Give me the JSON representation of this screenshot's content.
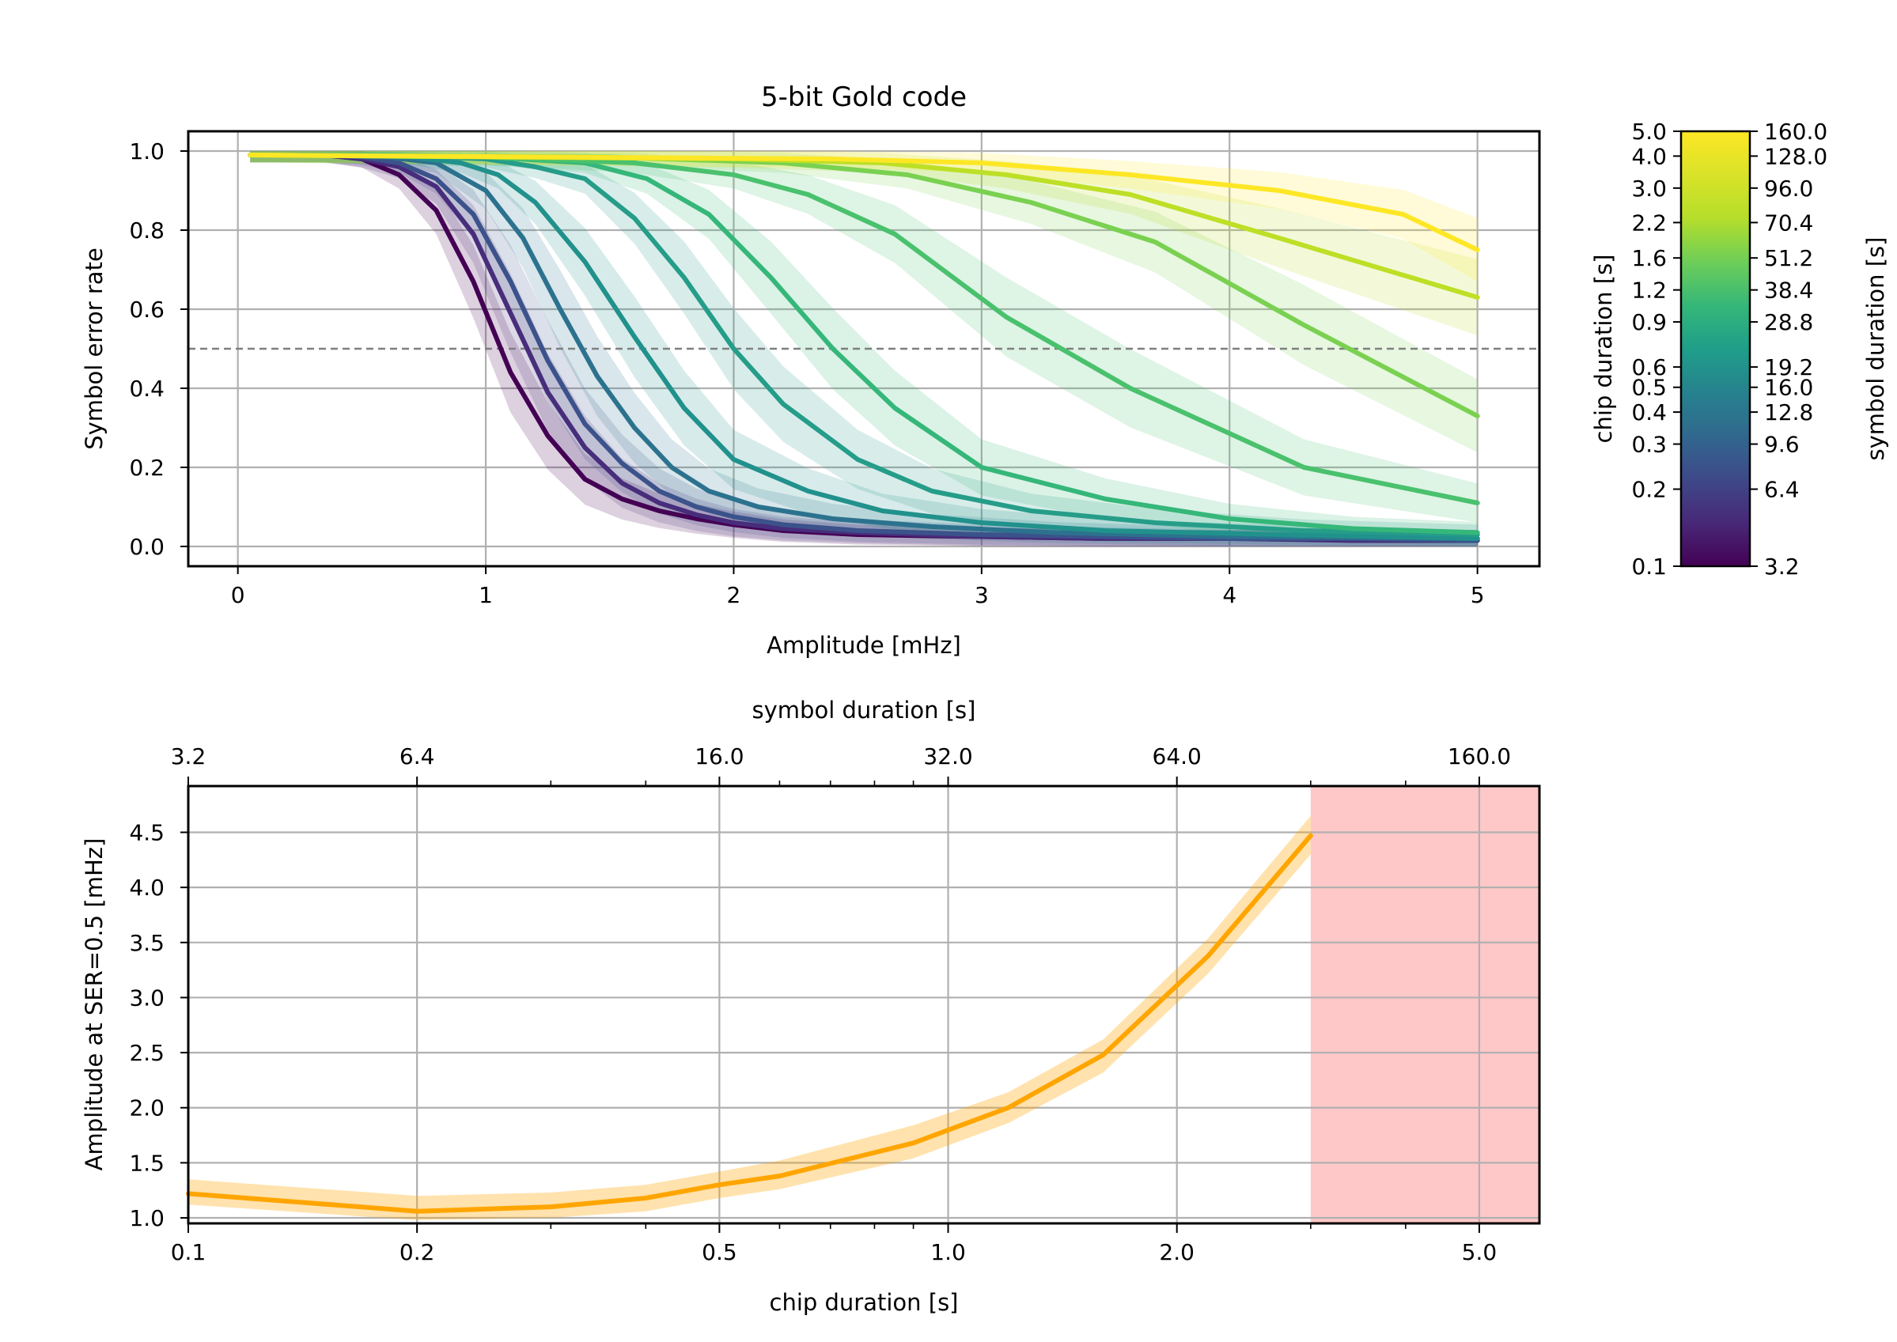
{
  "chart_data": [
    {
      "type": "line",
      "title": "5-bit Gold code",
      "xlabel": "Amplitude [mHz]",
      "ylabel": "Symbol error rate",
      "xlim": [
        -0.2,
        5.25
      ],
      "ylim": [
        -0.05,
        1.05
      ],
      "x_ticks": [
        0,
        1,
        2,
        3,
        4,
        5
      ],
      "y_ticks": [
        0.0,
        0.2,
        0.4,
        0.6,
        0.8,
        1.0
      ],
      "grid": true,
      "reference_line": {
        "y": 0.5,
        "style": "dashed",
        "color": "#7f7f7f"
      },
      "colormap": "viridis",
      "series": [
        {
          "chip_duration": 0.1,
          "symbol_duration": 3.2,
          "color": "#440154",
          "x": [
            0.05,
            0.2,
            0.35,
            0.5,
            0.65,
            0.8,
            0.95,
            1.1,
            1.25,
            1.4,
            1.55,
            1.7,
            1.85,
            2.0,
            2.2,
            2.5,
            3.0,
            3.5,
            4.0,
            4.5,
            5.0
          ],
          "y": [
            0.99,
            0.99,
            0.99,
            0.98,
            0.94,
            0.85,
            0.67,
            0.44,
            0.28,
            0.17,
            0.12,
            0.09,
            0.07,
            0.055,
            0.04,
            0.03,
            0.025,
            0.02,
            0.02,
            0.02,
            0.02
          ]
        },
        {
          "chip_duration": 0.2,
          "symbol_duration": 6.4,
          "color": "#472d7b",
          "x": [
            0.05,
            0.2,
            0.35,
            0.5,
            0.65,
            0.8,
            0.95,
            1.1,
            1.25,
            1.4,
            1.55,
            1.7,
            1.85,
            2.0,
            2.2,
            2.5,
            3.0,
            3.5,
            4.0,
            4.5,
            5.0
          ],
          "y": [
            0.99,
            0.99,
            0.99,
            0.98,
            0.96,
            0.91,
            0.79,
            0.59,
            0.39,
            0.25,
            0.16,
            0.11,
            0.08,
            0.06,
            0.045,
            0.035,
            0.025,
            0.02,
            0.02,
            0.015,
            0.015
          ]
        },
        {
          "chip_duration": 0.3,
          "symbol_duration": 9.6,
          "color": "#3b528b",
          "x": [
            0.05,
            0.2,
            0.35,
            0.5,
            0.65,
            0.8,
            0.95,
            1.1,
            1.25,
            1.4,
            1.55,
            1.7,
            1.85,
            2.0,
            2.2,
            2.5,
            3.0,
            3.5,
            4.0,
            4.5,
            5.0
          ],
          "y": [
            0.99,
            0.99,
            0.99,
            0.985,
            0.97,
            0.93,
            0.84,
            0.67,
            0.47,
            0.31,
            0.21,
            0.14,
            0.1,
            0.075,
            0.055,
            0.04,
            0.03,
            0.025,
            0.02,
            0.02,
            0.015
          ]
        },
        {
          "chip_duration": 0.4,
          "symbol_duration": 12.8,
          "color": "#2c728e",
          "x": [
            0.05,
            0.3,
            0.6,
            0.8,
            1.0,
            1.15,
            1.3,
            1.45,
            1.6,
            1.75,
            1.9,
            2.1,
            2.4,
            2.8,
            3.3,
            4.0,
            5.0
          ],
          "y": [
            0.99,
            0.99,
            0.985,
            0.97,
            0.9,
            0.78,
            0.6,
            0.43,
            0.3,
            0.2,
            0.14,
            0.1,
            0.07,
            0.05,
            0.035,
            0.025,
            0.02
          ]
        },
        {
          "chip_duration": 0.5,
          "symbol_duration": 16.0,
          "color": "#21918c",
          "x": [
            0.05,
            0.4,
            0.7,
            0.9,
            1.05,
            1.2,
            1.4,
            1.6,
            1.8,
            2.0,
            2.3,
            2.6,
            3.0,
            3.5,
            4.2,
            5.0
          ],
          "y": [
            0.99,
            0.99,
            0.985,
            0.97,
            0.94,
            0.87,
            0.72,
            0.53,
            0.35,
            0.22,
            0.14,
            0.09,
            0.06,
            0.04,
            0.03,
            0.02
          ]
        },
        {
          "chip_duration": 0.6,
          "symbol_duration": 19.2,
          "color": "#259d89",
          "x": [
            0.05,
            0.5,
            0.8,
            1.0,
            1.2,
            1.4,
            1.6,
            1.8,
            2.0,
            2.2,
            2.5,
            2.8,
            3.2,
            3.7,
            4.3,
            5.0
          ],
          "y": [
            0.99,
            0.99,
            0.985,
            0.98,
            0.96,
            0.93,
            0.83,
            0.68,
            0.5,
            0.36,
            0.22,
            0.14,
            0.09,
            0.06,
            0.04,
            0.03
          ]
        },
        {
          "chip_duration": 0.9,
          "symbol_duration": 28.8,
          "color": "#35b779",
          "x": [
            0.05,
            0.6,
            1.0,
            1.4,
            1.65,
            1.9,
            2.15,
            2.4,
            2.65,
            3.0,
            3.5,
            4.0,
            4.5,
            5.0
          ],
          "y": [
            0.99,
            0.99,
            0.985,
            0.97,
            0.93,
            0.84,
            0.68,
            0.5,
            0.35,
            0.2,
            0.12,
            0.07,
            0.045,
            0.035
          ]
        },
        {
          "chip_duration": 1.2,
          "symbol_duration": 38.4,
          "color": "#4ac16d",
          "x": [
            0.05,
            1.0,
            1.6,
            2.0,
            2.3,
            2.65,
            3.1,
            3.6,
            4.3,
            5.0
          ],
          "y": [
            0.99,
            0.985,
            0.97,
            0.94,
            0.89,
            0.79,
            0.58,
            0.4,
            0.2,
            0.11
          ]
        },
        {
          "chip_duration": 1.6,
          "symbol_duration": 51.2,
          "color": "#7ad151",
          "x": [
            0.05,
            1.5,
            2.2,
            2.7,
            3.2,
            3.7,
            4.3,
            5.0
          ],
          "y": [
            0.99,
            0.985,
            0.97,
            0.94,
            0.87,
            0.77,
            0.56,
            0.33
          ]
        },
        {
          "chip_duration": 2.2,
          "symbol_duration": 70.4,
          "color": "#bddf26",
          "x": [
            0.05,
            2.0,
            2.6,
            3.1,
            3.6,
            4.2,
            5.0
          ],
          "y": [
            0.99,
            0.98,
            0.97,
            0.94,
            0.89,
            0.78,
            0.63
          ]
        },
        {
          "chip_duration": 3.0,
          "symbol_duration": 96.0,
          "color": "#fde725",
          "x": [
            0.05,
            2.4,
            3.0,
            3.6,
            4.2,
            4.7,
            5.0
          ],
          "y": [
            0.99,
            0.98,
            0.97,
            0.94,
            0.9,
            0.84,
            0.75
          ]
        }
      ]
    },
    {
      "type": "colorbar",
      "left_label": "chip duration [s]",
      "right_label": "symbol duration [s]",
      "scale": "log",
      "range": [
        0.1,
        5.0
      ],
      "left_ticks": [
        "0.1",
        "0.2",
        "0.3",
        "0.4",
        "0.5",
        "0.6",
        "0.9",
        "1.2",
        "1.6",
        "2.2",
        "3.0",
        "4.0",
        "5.0"
      ],
      "left_tick_values": [
        0.1,
        0.2,
        0.3,
        0.4,
        0.5,
        0.6,
        0.9,
        1.2,
        1.6,
        2.2,
        3.0,
        4.0,
        5.0
      ],
      "right_ticks": [
        "3.2",
        "6.4",
        "9.6",
        "12.8",
        "16.0",
        "19.2",
        "28.8",
        "38.4",
        "51.2",
        "70.4",
        "96.0",
        "128.0",
        "160.0"
      ],
      "colormap": "viridis"
    },
    {
      "type": "line",
      "xlabel": "chip duration [s]",
      "ylabel": "Amplitude at SER=0.5 [mHz]",
      "top_xlabel": "symbol duration [s]",
      "xscale": "log",
      "xlim": [
        0.1,
        6.0
      ],
      "ylim": [
        0.95,
        4.92
      ],
      "x_ticks": [
        "0.1",
        "0.2",
        "0.5",
        "1.0",
        "2.0",
        "5.0"
      ],
      "x_tick_values": [
        0.1,
        0.2,
        0.5,
        1.0,
        2.0,
        5.0
      ],
      "top_ticks": [
        "3.2",
        "6.4",
        "16.0",
        "32.0",
        "64.0",
        "160.0"
      ],
      "y_ticks": [
        "1.0",
        "1.5",
        "2.0",
        "2.5",
        "3.0",
        "3.5",
        "4.0",
        "4.5"
      ],
      "y_tick_values": [
        1.0,
        1.5,
        2.0,
        2.5,
        3.0,
        3.5,
        4.0,
        4.5
      ],
      "grid": true,
      "shaded_region": {
        "x_from": 3.0,
        "x_to": 6.0,
        "color": "#ffc8c8"
      },
      "series": [
        {
          "color": "#ffa500",
          "x": [
            0.1,
            0.2,
            0.3,
            0.4,
            0.5,
            0.6,
            0.9,
            1.2,
            1.6,
            2.2,
            3.0
          ],
          "y": [
            1.22,
            1.06,
            1.1,
            1.18,
            1.3,
            1.38,
            1.68,
            2.0,
            2.48,
            3.38,
            4.47
          ],
          "lower": [
            1.12,
            0.98,
            1.0,
            1.06,
            1.18,
            1.26,
            1.54,
            1.86,
            2.32,
            3.22,
            4.3
          ],
          "upper": [
            1.35,
            1.2,
            1.23,
            1.3,
            1.42,
            1.52,
            1.84,
            2.14,
            2.62,
            3.54,
            4.65
          ]
        }
      ]
    }
  ]
}
